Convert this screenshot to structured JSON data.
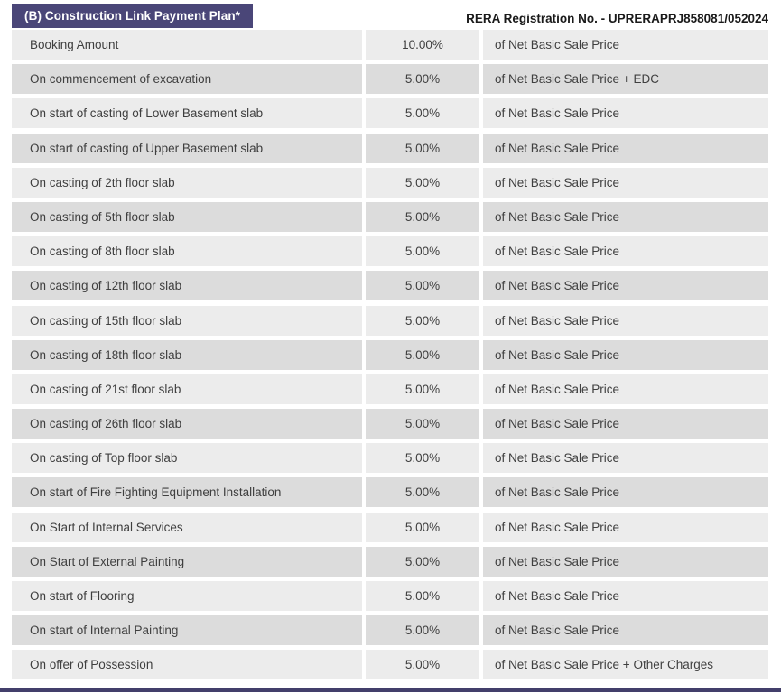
{
  "page": {
    "title_badge": "(B) Construction Link Payment Plan*",
    "rera_label": "RERA Registration No. - UPRERAPRJ858081/052024"
  },
  "colors": {
    "header_bg": "#4A4678",
    "row_light": "#ECECEC",
    "row_dark": "#DCDCDC",
    "row_text": "#3F3F3F",
    "footer_bar": "#433F6B",
    "rera_text": "#1A1A1A"
  },
  "table": {
    "rows": [
      {
        "milestone": "Booking Amount",
        "percent": "10.00%",
        "basis": "of Net Basic Sale Price"
      },
      {
        "milestone": "On commencement of excavation",
        "percent": "5.00%",
        "basis": "of Net Basic Sale Price + EDC"
      },
      {
        "milestone": "On start of casting of Lower Basement slab",
        "percent": "5.00%",
        "basis": "of Net Basic Sale Price"
      },
      {
        "milestone": "On start of casting of Upper Basement slab",
        "percent": "5.00%",
        "basis": "of Net Basic Sale Price"
      },
      {
        "milestone": "On casting of 2th floor slab",
        "percent": "5.00%",
        "basis": "of Net Basic Sale Price"
      },
      {
        "milestone": "On casting of 5th floor slab",
        "percent": "5.00%",
        "basis": "of Net Basic Sale Price"
      },
      {
        "milestone": "On casting of 8th floor slab",
        "percent": "5.00%",
        "basis": "of Net Basic Sale Price"
      },
      {
        "milestone": "On casting of 12th floor slab",
        "percent": "5.00%",
        "basis": "of Net Basic Sale Price"
      },
      {
        "milestone": "On casting of 15th floor slab",
        "percent": "5.00%",
        "basis": "of Net Basic Sale Price"
      },
      {
        "milestone": "On casting of 18th floor slab",
        "percent": "5.00%",
        "basis": "of Net Basic Sale Price"
      },
      {
        "milestone": "On casting of 21st floor slab",
        "percent": "5.00%",
        "basis": "of Net Basic Sale Price"
      },
      {
        "milestone": "On casting of 26th floor slab",
        "percent": "5.00%",
        "basis": "of Net Basic Sale Price"
      },
      {
        "milestone": "On casting of Top floor slab",
        "percent": "5.00%",
        "basis": "of Net Basic Sale Price"
      },
      {
        "milestone": "On start of Fire Fighting Equipment Installation",
        "percent": "5.00%",
        "basis": "of Net Basic Sale Price"
      },
      {
        "milestone": "On Start of Internal Services",
        "percent": "5.00%",
        "basis": "of Net Basic Sale Price"
      },
      {
        "milestone": "On Start of External Painting",
        "percent": "5.00%",
        "basis": "of Net Basic Sale Price"
      },
      {
        "milestone": "On start of Flooring",
        "percent": "5.00%",
        "basis": "of Net Basic Sale Price"
      },
      {
        "milestone": "On start of Internal Painting",
        "percent": "5.00%",
        "basis": "of Net Basic Sale Price"
      },
      {
        "milestone": "On offer of Possession",
        "percent": "5.00%",
        "basis": "of Net Basic Sale Price + Other Charges"
      }
    ]
  }
}
